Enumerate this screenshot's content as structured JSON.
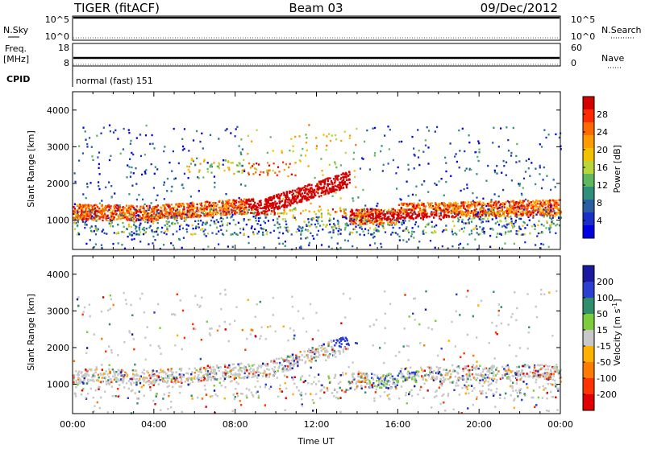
{
  "header": {
    "station": "TIGER (fitACF)",
    "beam": "Beam 03",
    "date": "09/Dec/2012"
  },
  "noise_panel": {
    "left_label": "N.Sky",
    "right_label": "N.Search",
    "left_ticks": [
      "10^5",
      "10^0"
    ],
    "right_ticks": [
      "10^5",
      "10^0"
    ]
  },
  "freq_panel": {
    "left_label": "Freq.",
    "left_unit": "[MHz]",
    "right_label": "Nave",
    "left_ticks": [
      "18",
      "8"
    ],
    "right_ticks": [
      "60",
      "0"
    ]
  },
  "cpid_panel": {
    "label": "CPID",
    "text": "normal (fast) 151"
  },
  "chart_data": [
    {
      "type": "heatmap",
      "name": "power-panel",
      "xlabel": "",
      "ylabel": "Slant Range [km]",
      "ylim": [
        200,
        4500
      ],
      "xlim_hours": [
        0,
        24
      ],
      "y_ticks": [
        1000,
        2000,
        3000,
        4000
      ],
      "colorbar": {
        "label": "Power [dB]",
        "ticks": [
          "28",
          "24",
          "20",
          "16",
          "12",
          "8",
          "4"
        ],
        "colors": [
          "#d40000",
          "#ff2a00",
          "#ff6a00",
          "#ff9a00",
          "#f2c200",
          "#b6d63a",
          "#5fb85f",
          "#2f8f7a",
          "#2a5ea0",
          "#1a2ec8",
          "#0000e0"
        ]
      }
    },
    {
      "type": "heatmap",
      "name": "velocity-panel",
      "xlabel": "Time UT",
      "ylabel": "Slant Range [km]",
      "ylim": [
        200,
        4500
      ],
      "xlim_hours": [
        0,
        24
      ],
      "y_ticks": [
        1000,
        2000,
        3000,
        4000
      ],
      "x_ticks": [
        "00:00",
        "04:00",
        "08:00",
        "12:00",
        "16:00",
        "20:00",
        "00:00"
      ],
      "colorbar": {
        "label": "Velocity [m s",
        "label_sup": "-1",
        "label_end": "]",
        "ticks": [
          "200",
          "100",
          "50",
          "15",
          "-15",
          "-50",
          "-100",
          "-200"
        ],
        "colors": [
          "#1a1aa0",
          "#2d3fd0",
          "#2f8f6a",
          "#7ccc3c",
          "#c8c8c8",
          "#ffb000",
          "#ff7a00",
          "#ff3300",
          "#e00000"
        ]
      }
    }
  ]
}
